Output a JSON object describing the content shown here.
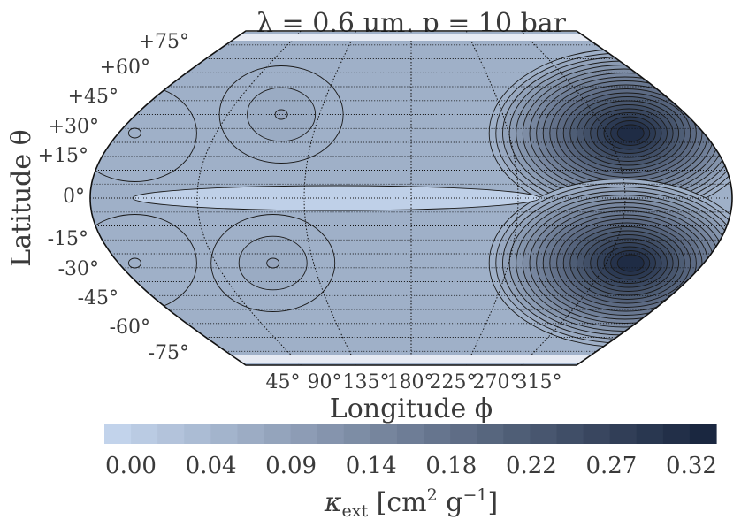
{
  "chart_data": {
    "type": "heatmap",
    "projection": "robinson",
    "title": "λ = 0.6 μm, p = 10 bar",
    "xlabel": "Longitude ϕ",
    "ylabel": "Latitude θ",
    "x_ticks": [
      "45°",
      "90°",
      "135°",
      "180°",
      "225°",
      "270°",
      "315°"
    ],
    "y_ticks": [
      "+75°",
      "+60°",
      "+45°",
      "+30°",
      "+15°",
      "0°",
      "-15°",
      "-30°",
      "-45°",
      "-60°",
      "-75°"
    ],
    "colorbar": {
      "label": "κ_ext [cm² g⁻¹]",
      "label_main": "κ",
      "label_sub": "ext",
      "label_rest": " [cm",
      "label_sup1": "2",
      "label_mid": " g",
      "label_sup2": "−1",
      "label_end": "]",
      "ticks": [
        "0.00",
        "0.04",
        "0.09",
        "0.14",
        "0.18",
        "0.22",
        "0.27",
        "0.32"
      ],
      "range": [
        0.0,
        0.34
      ],
      "levels": 23,
      "color_low": "#c2d3eb",
      "color_high": "#1a2740"
    },
    "features": [
      {
        "lon": 95,
        "lat": 45,
        "value": 0.09
      },
      {
        "lon": 95,
        "lat": -35,
        "value": 0.09
      },
      {
        "lon": 315,
        "lat": 35,
        "value": 0.33
      },
      {
        "lon": 315,
        "lat": -35,
        "value": 0.33
      },
      {
        "lon": 10,
        "lat": 35,
        "value": 0.07
      },
      {
        "lon": 10,
        "lat": -35,
        "value": 0.07
      }
    ]
  }
}
